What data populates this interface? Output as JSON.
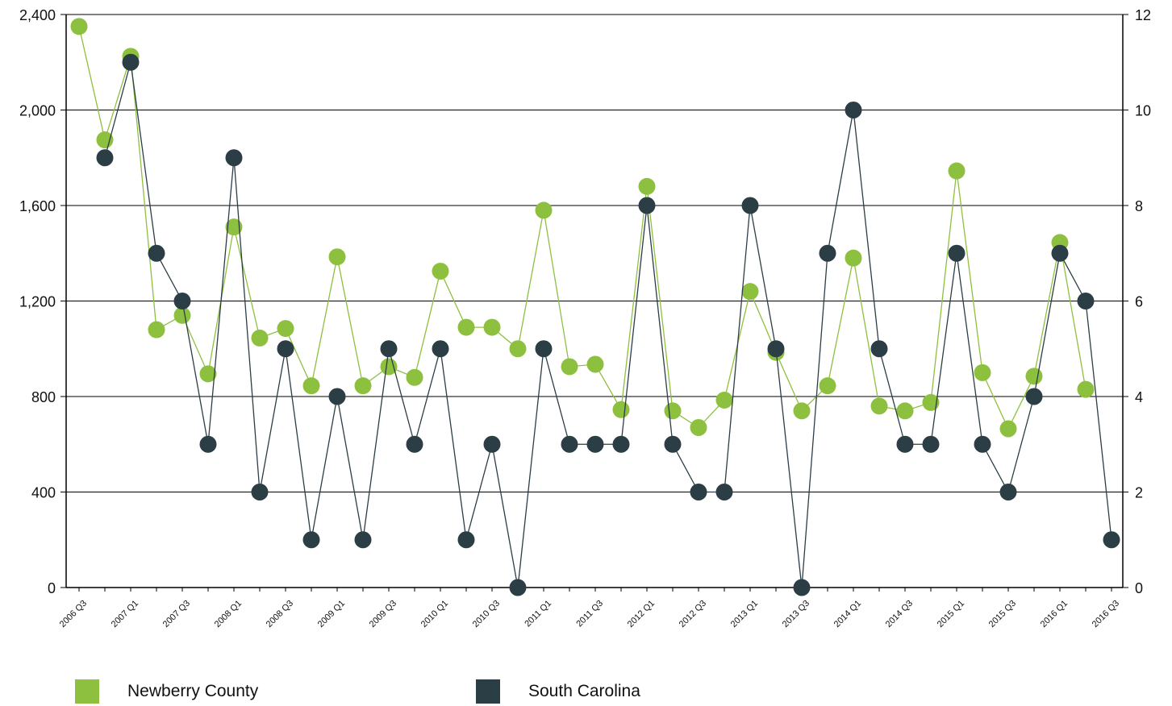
{
  "chart_data": {
    "type": "line",
    "categories": [
      "2006 Q3",
      "2006 Q4",
      "2007 Q1",
      "2007 Q2",
      "2007 Q3",
      "2007 Q4",
      "2008 Q1",
      "2008 Q2",
      "2008 Q3",
      "2008 Q4",
      "2009 Q1",
      "2009 Q2",
      "2009 Q3",
      "2009 Q4",
      "2010 Q1",
      "2010 Q2",
      "2010 Q3",
      "2010 Q4",
      "2011 Q1",
      "2011 Q2",
      "2011 Q3",
      "2011 Q4",
      "2012 Q1",
      "2012 Q2",
      "2012 Q3",
      "2012 Q4",
      "2013 Q1",
      "2013 Q2",
      "2013 Q3",
      "2013 Q4",
      "2014 Q1",
      "2014 Q2",
      "2014 Q3",
      "2014 Q4",
      "2015 Q1",
      "2015 Q2",
      "2015 Q3",
      "2015 Q4",
      "2016 Q1",
      "2016 Q2",
      "2016 Q3"
    ],
    "x_tick_labels": [
      "2006 Q3",
      "2007 Q1",
      "2007 Q3",
      "2008 Q1",
      "2008 Q3",
      "2009 Q1",
      "2009 Q3",
      "2010 Q1",
      "2010 Q3",
      "2011 Q1",
      "2011 Q3",
      "2012 Q1",
      "2012 Q3",
      "2013 Q1",
      "2013 Q3",
      "2014 Q1",
      "2014 Q3",
      "2015 Q1",
      "2015 Q3",
      "2016 Q1",
      "2016 Q3"
    ],
    "y_left": {
      "ylim": [
        0,
        2400
      ],
      "ticks": [
        0,
        400,
        800,
        1200,
        1600,
        2000,
        2400
      ],
      "tick_labels": [
        "0",
        "400",
        "800",
        "1,200",
        "1,600",
        "2,000",
        "2,400"
      ]
    },
    "y_right": {
      "ylim": [
        0,
        12
      ],
      "ticks": [
        0,
        2,
        4,
        6,
        8,
        10,
        12
      ],
      "tick_labels": [
        "0",
        "2",
        "4",
        "6",
        "8",
        "10",
        "12"
      ]
    },
    "grid": true,
    "legend_position": "bottom",
    "series": [
      {
        "name": "Newberry County",
        "axis": "left",
        "color": "#8dc03f",
        "values": [
          2350,
          1875,
          2225,
          1080,
          1140,
          895,
          1510,
          1045,
          1085,
          845,
          1385,
          845,
          925,
          880,
          1325,
          1090,
          1090,
          1000,
          1580,
          925,
          935,
          745,
          1680,
          740,
          670,
          785,
          1240,
          985,
          740,
          845,
          1380,
          760,
          740,
          775,
          1745,
          900,
          665,
          885,
          1445,
          830,
          null
        ]
      },
      {
        "name": "South Carolina",
        "axis": "right",
        "color": "#2b3d45",
        "values": [
          null,
          9,
          11,
          7,
          6,
          3,
          9,
          2,
          5,
          1,
          4,
          1,
          5,
          3,
          5,
          1,
          3,
          0,
          5,
          3,
          3,
          3,
          8,
          3,
          2,
          2,
          8,
          5,
          0,
          7,
          10,
          5,
          3,
          3,
          7,
          3,
          2,
          4,
          7,
          6,
          1
        ]
      }
    ]
  }
}
